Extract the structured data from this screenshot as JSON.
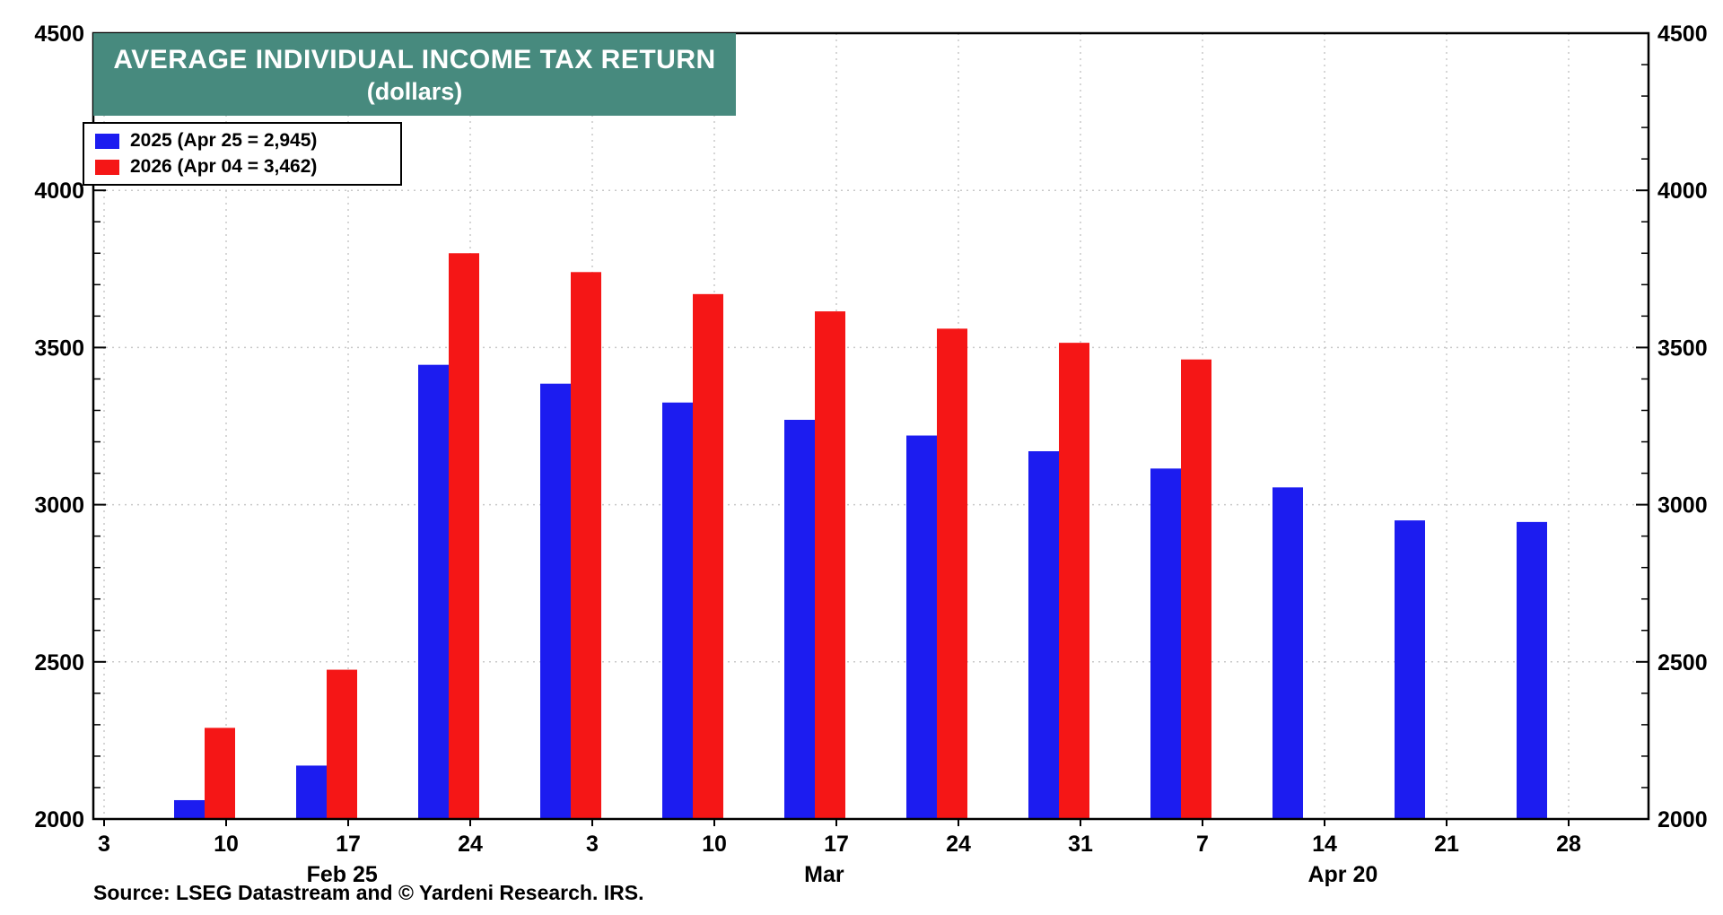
{
  "title": {
    "line1": "AVERAGE INDIVIDUAL INCOME TAX RETURN",
    "line2": "(dollars)",
    "bg_color": "#478a7e",
    "text_color": "#ffffff"
  },
  "legend": {
    "entries": [
      {
        "label": "2025 (Apr 25 = 2,945)",
        "color": "#1c1cf0"
      },
      {
        "label": "2026 (Apr 04 = 3,462)",
        "color": "#f51616"
      }
    ]
  },
  "source": "Source: LSEG Datastream and © Yardeni Research. IRS.",
  "chart_data": {
    "type": "bar",
    "title": "AVERAGE INDIVIDUAL INCOME TAX RETURN (dollars)",
    "y_axis": {
      "min": 2000,
      "max": 4500,
      "major_step": 500,
      "minor_step": 100,
      "labels": [
        "2000",
        "2500",
        "3000",
        "3500",
        "4000",
        "4500"
      ],
      "label_sides": "both"
    },
    "x_tick_labels": [
      "3",
      "10",
      "17",
      "24",
      "3",
      "10",
      "17",
      "24",
      "31",
      "7",
      "14",
      "21",
      "28"
    ],
    "month_labels": [
      {
        "label": "Feb 25",
        "tick_pos": 1.95
      },
      {
        "label": "Mar",
        "tick_pos": 5.9
      },
      {
        "label": "Apr 20",
        "tick_pos": 10.15
      }
    ],
    "bar_tick_start": 1,
    "series": [
      {
        "name": "2025",
        "color": "#1c1cf0",
        "values": [
          2060,
          2170,
          3445,
          3385,
          3325,
          3270,
          3220,
          3170,
          3115,
          3055,
          2950,
          2945
        ]
      },
      {
        "name": "2026",
        "color": "#f51616",
        "values": [
          2290,
          2475,
          3800,
          3740,
          3670,
          3615,
          3560,
          3515,
          3462,
          null,
          null,
          null
        ]
      }
    ],
    "grid": {
      "horizontal_at": [
        2500,
        3000,
        3500,
        4000
      ],
      "vertical": "at_each_x_tick",
      "style": "dotted",
      "color": "#c8c8c8"
    }
  }
}
